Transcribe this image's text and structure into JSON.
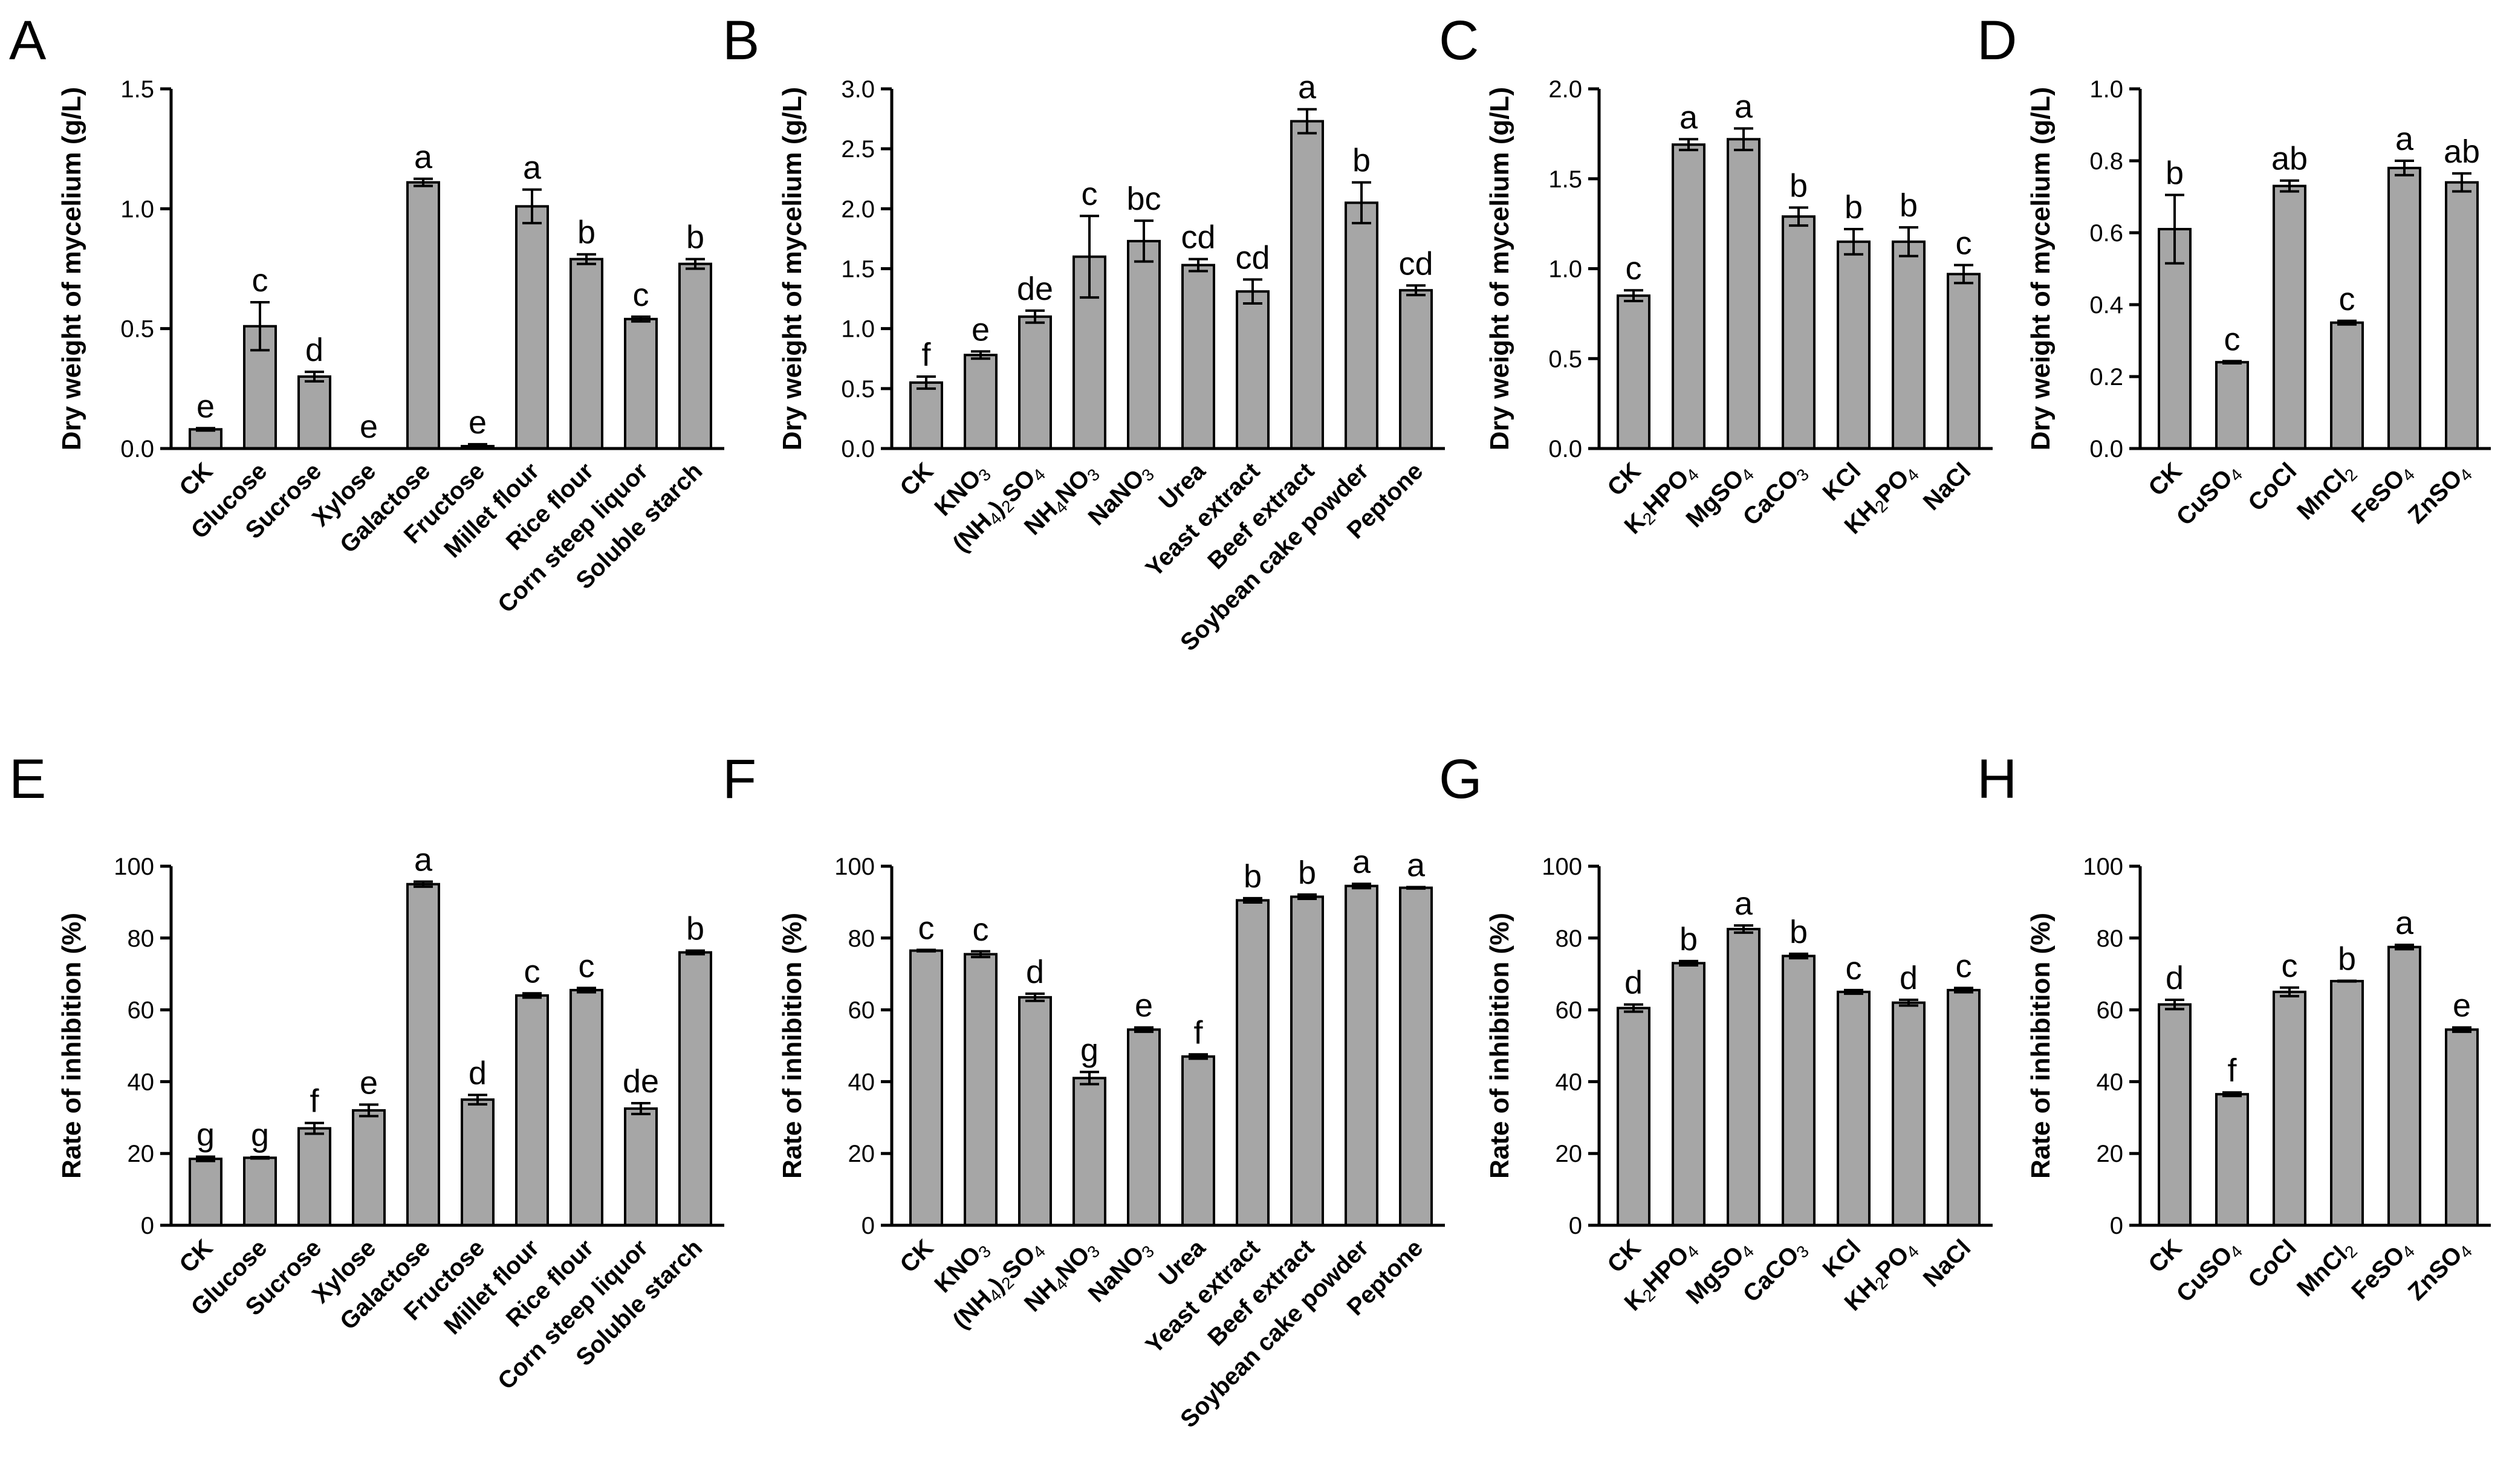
{
  "figure": {
    "colors": {
      "bar": "#a6a6a6",
      "stroke": "#000000",
      "background": "#ffffff"
    }
  },
  "chart_data": [
    {
      "panel": "A",
      "type": "bar",
      "ylabel": "Dry weight of mycelium (g/L)",
      "ylim": [
        0,
        1.5
      ],
      "yticks": [
        "0.0",
        "0.5",
        "1.0",
        "1.5"
      ],
      "categories": [
        "CK",
        "Glucose",
        "Sucrose",
        "Xylose",
        "Galactose",
        "Fructose",
        "Millet flour",
        "Rice flour",
        "Corn steep liquor",
        "Soluble starch"
      ],
      "values": [
        0.08,
        0.51,
        0.3,
        0.0,
        1.11,
        0.01,
        1.01,
        0.79,
        0.54,
        0.77
      ],
      "errors": [
        0.005,
        0.1,
        0.02,
        0.0,
        0.015,
        0.008,
        0.07,
        0.02,
        0.01,
        0.02
      ],
      "letters": [
        "e",
        "c",
        "d",
        "e",
        "a",
        "e",
        "a",
        "b",
        "c",
        "b"
      ]
    },
    {
      "panel": "B",
      "type": "bar",
      "ylabel": "Dry weight of mycelium (g/L)",
      "ylim": [
        0,
        3.0
      ],
      "yticks": [
        "0.0",
        "0.5",
        "1.0",
        "1.5",
        "2.0",
        "2.5",
        "3.0"
      ],
      "categories": [
        "CK",
        "KNO3",
        "(NH4)2SO4",
        "NH4NO3",
        "NaNO3",
        "Urea",
        "Yeast extract",
        "Beef extract",
        "Soybean cake powder",
        "Peptone"
      ],
      "values": [
        0.55,
        0.78,
        1.1,
        1.6,
        1.73,
        1.53,
        1.31,
        2.73,
        2.05,
        1.32
      ],
      "errors": [
        0.05,
        0.03,
        0.05,
        0.34,
        0.17,
        0.05,
        0.1,
        0.1,
        0.17,
        0.04
      ],
      "letters": [
        "f",
        "e",
        "de",
        "c",
        "bc",
        "cd",
        "cd",
        "a",
        "b",
        "cd"
      ]
    },
    {
      "panel": "C",
      "type": "bar",
      "ylabel": "Dry weight of mycelium (g/L)",
      "ylim": [
        0,
        2.0
      ],
      "yticks": [
        "0.0",
        "0.5",
        "1.0",
        "1.5",
        "2.0"
      ],
      "categories": [
        "CK",
        "K2HPO4",
        "MgSO4",
        "CaCO3",
        "KCl",
        "KH2PO4",
        "NaCl"
      ],
      "values": [
        0.85,
        1.69,
        1.72,
        1.29,
        1.15,
        1.15,
        0.97
      ],
      "errors": [
        0.03,
        0.03,
        0.06,
        0.05,
        0.07,
        0.08,
        0.05
      ],
      "letters": [
        "c",
        "a",
        "a",
        "b",
        "b",
        "b",
        "c"
      ]
    },
    {
      "panel": "D",
      "type": "bar",
      "ylabel": "Dry weight of mycelium (g/L)",
      "ylim": [
        0,
        1.0
      ],
      "yticks": [
        "0.0",
        "0.2",
        "0.4",
        "0.6",
        "0.8",
        "1.0"
      ],
      "categories": [
        "CK",
        "CuSO4",
        "CoCl",
        "MnCl2",
        "FeSO4",
        "ZnSO4"
      ],
      "values": [
        0.61,
        0.24,
        0.73,
        0.35,
        0.78,
        0.74
      ],
      "errors": [
        0.095,
        0.003,
        0.015,
        0.005,
        0.02,
        0.025
      ],
      "letters": [
        "b",
        "c",
        "ab",
        "c",
        "a",
        "ab"
      ]
    },
    {
      "panel": "E",
      "type": "bar",
      "ylabel": "Rate of inhibition (%)",
      "ylim": [
        0,
        100
      ],
      "yticks": [
        "0",
        "20",
        "40",
        "60",
        "80",
        "100"
      ],
      "categories": [
        "CK",
        "Glucose",
        "Sucrose",
        "Xylose",
        "Galactose",
        "Fructose",
        "Millet flour",
        "Rice flour",
        "Corn steep liquor",
        "Soluble starch"
      ],
      "values": [
        18.5,
        18.8,
        27,
        32,
        95,
        35,
        64,
        65.5,
        32.5,
        76
      ],
      "errors": [
        0.6,
        0.2,
        1.5,
        1.6,
        0.7,
        1.3,
        0.6,
        0.6,
        1.5,
        0.5
      ],
      "letters": [
        "g",
        "g",
        "f",
        "e",
        "a",
        "d",
        "c",
        "c",
        "de",
        "b"
      ]
    },
    {
      "panel": "F",
      "type": "bar",
      "ylabel": "Rate of inhibition (%)",
      "ylim": [
        0,
        100
      ],
      "yticks": [
        "0",
        "20",
        "40",
        "60",
        "80",
        "100"
      ],
      "categories": [
        "CK",
        "KNO3",
        "(NH4)2SO4",
        "NH4NO3",
        "NaNO3",
        "Urea",
        "Yeast extract",
        "Beef extract",
        "Soybean cake powder",
        "Peptone"
      ],
      "values": [
        76.5,
        75.5,
        63.5,
        41,
        54.5,
        47,
        90.5,
        91.5,
        94.5,
        94
      ],
      "errors": [
        0.2,
        0.8,
        1.0,
        1.7,
        0.6,
        0.6,
        0.6,
        0.6,
        0.6,
        0.2
      ],
      "letters": [
        "c",
        "c",
        "d",
        "g",
        "e",
        "f",
        "b",
        "b",
        "a",
        "a"
      ]
    },
    {
      "panel": "G",
      "type": "bar",
      "ylabel": "Rate of inhibition (%)",
      "ylim": [
        0,
        100
      ],
      "yticks": [
        "0",
        "20",
        "40",
        "60",
        "80",
        "100"
      ],
      "categories": [
        "CK",
        "K2HPO4",
        "MgSO4",
        "CaCO3",
        "KCl",
        "KH2PO4",
        "NaCl"
      ],
      "values": [
        60.5,
        73,
        82.5,
        75,
        65,
        62,
        65.5
      ],
      "errors": [
        1.0,
        0.6,
        1.0,
        0.6,
        0.5,
        0.8,
        0.6
      ],
      "letters": [
        "d",
        "b",
        "a",
        "b",
        "c",
        "d",
        "c"
      ]
    },
    {
      "panel": "H",
      "type": "bar",
      "ylabel": "Rate of inhibition (%)",
      "ylim": [
        0,
        100
      ],
      "yticks": [
        "0",
        "20",
        "40",
        "60",
        "80",
        "100"
      ],
      "categories": [
        "CK",
        "CuSO4",
        "CoCl",
        "MnCl2",
        "FeSO4",
        "ZnSO4"
      ],
      "values": [
        61.5,
        36.5,
        65,
        68,
        77.5,
        54.5
      ],
      "errors": [
        1.3,
        0.5,
        1.2,
        0.1,
        0.6,
        0.6
      ],
      "letters": [
        "d",
        "f",
        "c",
        "b",
        "a",
        "e"
      ]
    }
  ]
}
